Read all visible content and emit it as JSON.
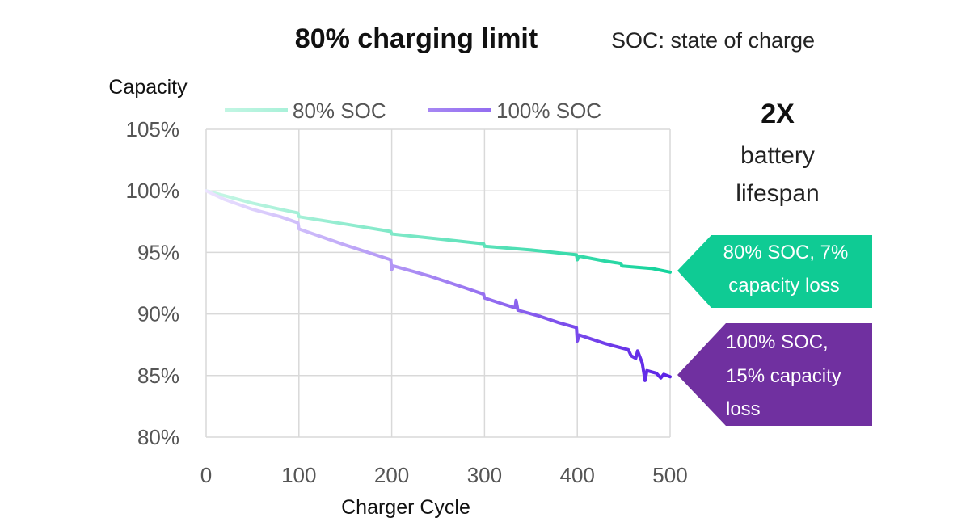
{
  "header": {
    "title": "80% charging limit",
    "subtitle": "SOC: state of charge"
  },
  "side_note": {
    "headline": "2X",
    "lines": [
      "battery",
      "lifespan"
    ]
  },
  "callouts": [
    {
      "lines": [
        "80% SOC, 7%",
        "capacity loss"
      ],
      "color": "#0fcb94"
    },
    {
      "lines": [
        "100% SOC,",
        "15% capacity",
        "loss"
      ],
      "color": "#7030a0"
    }
  ],
  "chart_data": {
    "type": "line",
    "title": "80% charging limit",
    "xlabel": "Charger Cycle",
    "ylabel": "Capacity",
    "xlim": [
      0,
      500
    ],
    "ylim": [
      80,
      105
    ],
    "x_ticks": [
      0,
      100,
      200,
      300,
      400,
      500
    ],
    "y_ticks": [
      80,
      85,
      90,
      95,
      100,
      105
    ],
    "y_tick_labels": [
      "80%",
      "85%",
      "90%",
      "95%",
      "100%",
      "105%"
    ],
    "grid": true,
    "legend": "top",
    "series": [
      {
        "name": "80% SOC",
        "color_start": "#c9f7e6",
        "color_end": "#12d39b",
        "points": [
          [
            0,
            100
          ],
          [
            10,
            99.8
          ],
          [
            30,
            99.4
          ],
          [
            50,
            99.0
          ],
          [
            80,
            98.5
          ],
          [
            99,
            98.2
          ],
          [
            100,
            97.9
          ],
          [
            150,
            97.3
          ],
          [
            199,
            96.7
          ],
          [
            200,
            96.5
          ],
          [
            250,
            96.1
          ],
          [
            299,
            95.7
          ],
          [
            300,
            95.5
          ],
          [
            350,
            95.2
          ],
          [
            399,
            94.8
          ],
          [
            400,
            94.4
          ],
          [
            402,
            94.7
          ],
          [
            430,
            94.3
          ],
          [
            447,
            94.1
          ],
          [
            448,
            93.9
          ],
          [
            480,
            93.7
          ],
          [
            500,
            93.4
          ]
        ]
      },
      {
        "name": "100% SOC",
        "color_start": "#ece4ff",
        "color_end": "#5b22e6",
        "points": [
          [
            0,
            100
          ],
          [
            20,
            99.3
          ],
          [
            50,
            98.5
          ],
          [
            80,
            97.9
          ],
          [
            99,
            97.4
          ],
          [
            100,
            96.9
          ],
          [
            150,
            95.6
          ],
          [
            199,
            94.4
          ],
          [
            200,
            93.6
          ],
          [
            202,
            93.9
          ],
          [
            240,
            93.1
          ],
          [
            280,
            92.1
          ],
          [
            299,
            91.6
          ],
          [
            300,
            91.3
          ],
          [
            320,
            90.8
          ],
          [
            333,
            90.5
          ],
          [
            334,
            91.1
          ],
          [
            336,
            90.3
          ],
          [
            360,
            89.8
          ],
          [
            380,
            89.3
          ],
          [
            399,
            88.9
          ],
          [
            400,
            87.8
          ],
          [
            402,
            88.3
          ],
          [
            430,
            87.6
          ],
          [
            455,
            87.1
          ],
          [
            458,
            86.6
          ],
          [
            463,
            86.4
          ],
          [
            465,
            87.0
          ],
          [
            470,
            86.0
          ],
          [
            473,
            84.6
          ],
          [
            475,
            85.4
          ],
          [
            485,
            85.2
          ],
          [
            490,
            84.8
          ],
          [
            493,
            85.1
          ],
          [
            500,
            84.9
          ]
        ]
      }
    ]
  }
}
